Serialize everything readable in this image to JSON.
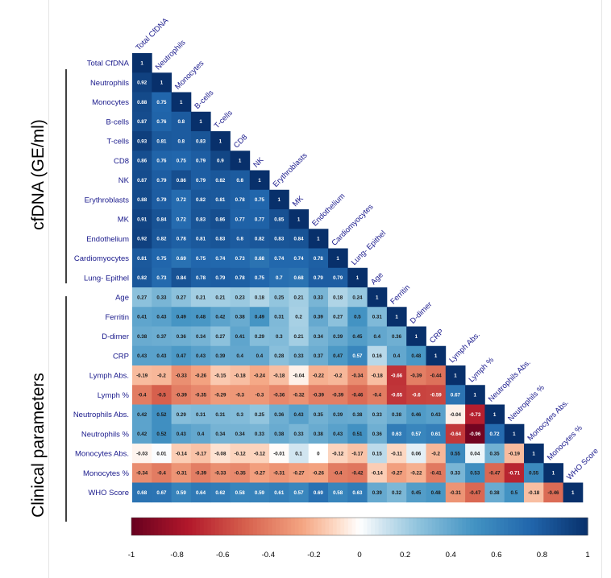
{
  "chart_data": {
    "type": "heatmap",
    "variables": [
      "Total CfDNA",
      "Neutrophils",
      "Monocytes",
      "B-cells",
      "T-cells",
      "CD8",
      "NK",
      "Erythroblasts",
      "MK",
      "Endothelium",
      "Cardiomyocytes",
      "Lung- Epithel",
      "Age",
      "Ferritin",
      "D-dimer",
      "CRP",
      "Lymph Abs.",
      "Lymph %",
      "Neutrophils Abs.",
      "Neutrophils %",
      "Monocytes Abs.",
      "Monocytes %",
      "WHO Score"
    ],
    "matrix_lower": [
      [
        "1"
      ],
      [
        "0.92",
        "1"
      ],
      [
        "0.88",
        "0.75",
        "1"
      ],
      [
        "0.87",
        "0.76",
        "0.8",
        "1"
      ],
      [
        "0.93",
        "0.81",
        "0.8",
        "0.83",
        "1"
      ],
      [
        "0.86",
        "0.76",
        "0.75",
        "0.79",
        "0.9",
        "1"
      ],
      [
        "0.87",
        "0.79",
        "0.86",
        "0.79",
        "0.82",
        "0.8",
        "1"
      ],
      [
        "0.88",
        "0.79",
        "0.72",
        "0.82",
        "0.81",
        "0.78",
        "0.75",
        "1"
      ],
      [
        "0.91",
        "0.84",
        "0.72",
        "0.83",
        "0.86",
        "0.77",
        "0.77",
        "0.85",
        "1"
      ],
      [
        "0.92",
        "0.82",
        "0.78",
        "0.81",
        "0.83",
        "0.8",
        "0.82",
        "0.83",
        "0.84",
        "1"
      ],
      [
        "0.81",
        "0.75",
        "0.69",
        "0.75",
        "0.74",
        "0.73",
        "0.68",
        "0.74",
        "0.74",
        "0.78",
        "1"
      ],
      [
        "0.82",
        "0.73",
        "0.84",
        "0.78",
        "0.79",
        "0.78",
        "0.75",
        "0.7",
        "0.68",
        "0.79",
        "0.79",
        "1"
      ],
      [
        "0.27",
        "0.33",
        "0.27",
        "0.21",
        "0.21",
        "0.23",
        "0.18",
        "0.25",
        "0.21",
        "0.33",
        "0.18",
        "0.24",
        "1"
      ],
      [
        "0.41",
        "0.43",
        "0.49",
        "0.48",
        "0.42",
        "0.38",
        "0.49",
        "0.31",
        "0.2",
        "0.39",
        "0.27",
        "0.5",
        "0.31",
        "1"
      ],
      [
        "0.38",
        "0.37",
        "0.36",
        "0.34",
        "0.27",
        "0.41",
        "0.29",
        "0.3",
        "0.21",
        "0.34",
        "0.39",
        "0.45",
        "0.4",
        "0.36",
        "1"
      ],
      [
        "0.43",
        "0.43",
        "0.47",
        "0.43",
        "0.39",
        "0.4",
        "0.4",
        "0.28",
        "0.33",
        "0.37",
        "0.47",
        "0.57",
        "0.16",
        "0.4",
        "0.48",
        "1"
      ],
      [
        "-0.19",
        "-0.2",
        "-0.33",
        "-0.26",
        "-0.15",
        "-0.18",
        "-0.24",
        "-0.18",
        "-0.04",
        "-0.22",
        "-0.2",
        "-0.34",
        "-0.18",
        "-0.66",
        "-0.39",
        "-0.44",
        "1"
      ],
      [
        "-0.4",
        "-0.5",
        "-0.39",
        "-0.35",
        "-0.29",
        "-0.3",
        "-0.3",
        "-0.36",
        "-0.32",
        "-0.39",
        "-0.39",
        "-0.46",
        "-0.4",
        "-0.65",
        "-0.6",
        "-0.59",
        "0.67",
        "1"
      ],
      [
        "0.42",
        "0.52",
        "0.29",
        "0.31",
        "0.31",
        "0.3",
        "0.25",
        "0.36",
        "0.43",
        "0.35",
        "0.39",
        "0.38",
        "0.33",
        "0.38",
        "0.46",
        "0.43",
        "-0.04",
        "-0.73",
        "1"
      ],
      [
        "0.42",
        "0.52",
        "0.43",
        "0.4",
        "0.34",
        "0.34",
        "0.33",
        "0.38",
        "0.33",
        "0.38",
        "0.43",
        "0.51",
        "0.36",
        "0.63",
        "0.57",
        "0.61",
        "-0.64",
        "-0.96",
        "0.72",
        "1"
      ],
      [
        "-0.03",
        "0.01",
        "-0.14",
        "-0.17",
        "-0.08",
        "-0.12",
        "-0.12",
        "-0.01",
        "0.1",
        "0",
        "-0.12",
        "-0.17",
        "0.15",
        "-0.11",
        "0.06",
        "-0.2",
        "0.55",
        "0.04",
        "0.35",
        "-0.19",
        "1"
      ],
      [
        "-0.34",
        "-0.4",
        "-0.31",
        "-0.39",
        "-0.33",
        "-0.35",
        "-0.27",
        "-0.31",
        "-0.27",
        "-0.26",
        "-0.4",
        "-0.42",
        "-0.14",
        "-0.27",
        "-0.22",
        "-0.41",
        "0.33",
        "0.53",
        "-0.47",
        "-0.71",
        "0.55",
        "1"
      ],
      [
        "0.68",
        "0.67",
        "0.59",
        "0.64",
        "0.62",
        "0.58",
        "0.59",
        "0.61",
        "0.57",
        "0.69",
        "0.58",
        "0.63",
        "0.39",
        "0.32",
        "0.45",
        "0.48",
        "-0.31",
        "-0.47",
        "0.38",
        "0.5",
        "-0.18",
        "-0.46",
        "1"
      ]
    ],
    "group_labels": [
      "cfDNA (GE/ml)",
      "Clinical parameters"
    ],
    "colorbar_ticks": [
      "-1",
      "-0.8",
      "-0.6",
      "-0.4",
      "-0.2",
      "0",
      "0.2",
      "0.4",
      "0.6",
      "0.8",
      "1"
    ],
    "colorbar_range": [
      -1,
      1
    ],
    "colors": {
      "negative": "#67001f",
      "mid": "#ffffff",
      "positive": "#08306b",
      "label_text": "#1a1a8c"
    }
  }
}
